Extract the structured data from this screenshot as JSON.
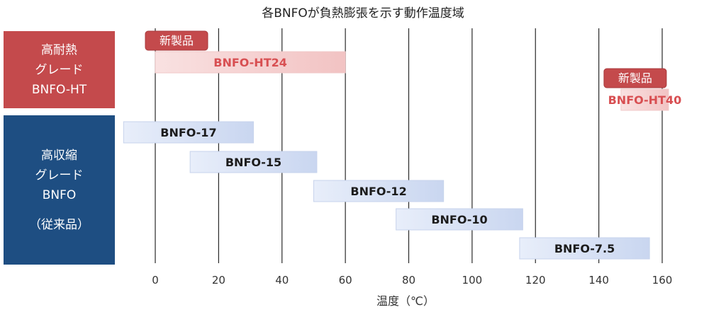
{
  "chart_data": {
    "type": "bar",
    "title": "各BNFOが負熱膨張を示す動作温度域",
    "xlabel": "温度（℃）",
    "xlim": [
      0,
      160
    ],
    "xticks": [
      0,
      20,
      40,
      60,
      80,
      100,
      120,
      140,
      160
    ],
    "groups": [
      {
        "lines": [
          "高耐熱",
          "グレード",
          "BNFO-HT"
        ],
        "color": "#c44a4c"
      },
      {
        "lines": [
          "高収縮",
          "グレード",
          "BNFO",
          "",
          "（従来品）"
        ],
        "color": "#1e4e82"
      }
    ],
    "series": [
      {
        "name": "BNFO-HT24",
        "range": [
          0,
          60
        ],
        "group": 0,
        "badge": "新製品"
      },
      {
        "name": "BNFO-HT40",
        "range": [
          147,
          162
        ],
        "group": 0,
        "badge": "新製品"
      },
      {
        "name": "BNFO-17",
        "range": [
          -10,
          31
        ],
        "group": 1
      },
      {
        "name": "BNFO-15",
        "range": [
          11,
          51
        ],
        "group": 1
      },
      {
        "name": "BNFO-12",
        "range": [
          50,
          91
        ],
        "group": 1
      },
      {
        "name": "BNFO-10",
        "range": [
          76,
          116
        ],
        "group": 1
      },
      {
        "name": "BNFO-7.5",
        "range": [
          115,
          156
        ],
        "group": 1
      }
    ],
    "grid": true
  }
}
